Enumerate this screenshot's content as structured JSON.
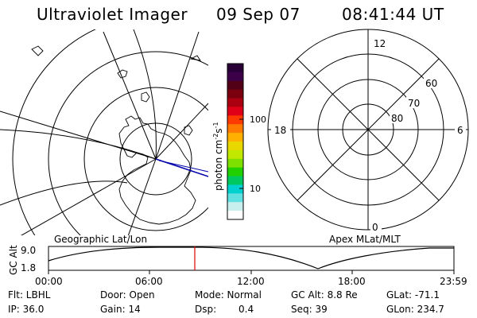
{
  "header": {
    "instrument": "Ultraviolet Imager",
    "date": "09 Sep 07",
    "time": "08:41:44 UT"
  },
  "colorbar": {
    "label": "photon cm",
    "label_sup1": "-2",
    "label_mid": "s",
    "label_sup2": "-1",
    "ticks": [
      "100",
      "10"
    ],
    "colors": [
      "#2a0038",
      "#3c0048",
      "#520018",
      "#7a0010",
      "#aa0010",
      "#e00018",
      "#ff3a00",
      "#ff7a00",
      "#ffb000",
      "#e8d800",
      "#c0e800",
      "#7ee000",
      "#20d000",
      "#00c860",
      "#00d0d0",
      "#60e0e0",
      "#c8eeee",
      "#ffffff"
    ]
  },
  "left_map": {
    "caption": "Geographic Lat/Lon"
  },
  "right_polar": {
    "caption": "Apex MLat/MLT",
    "mlt_labels": {
      "top": "12",
      "left": "18",
      "right": "6",
      "bottom": "0"
    },
    "lat_labels": [
      "60",
      "70",
      "80"
    ]
  },
  "timeline": {
    "ylabel": "GC Alt",
    "y_ticks": [
      "9.0",
      "1.8"
    ],
    "x_ticks": [
      "00:00",
      "06:00",
      "12:00",
      "18:00",
      "23:59"
    ],
    "marker_time": "08:41:44",
    "marker_color": "#e00000"
  },
  "footer": {
    "row1": [
      "Flt: LBHL",
      "Door: Open",
      "Mode: Normal",
      "GC Alt: 8.8 Re",
      "GLat: -71.1"
    ],
    "row2": [
      "IP: 36.0",
      "Gain: 14",
      "Dsp:",
      "0.4",
      "Seq: 39",
      "GLon: 234.7"
    ]
  }
}
